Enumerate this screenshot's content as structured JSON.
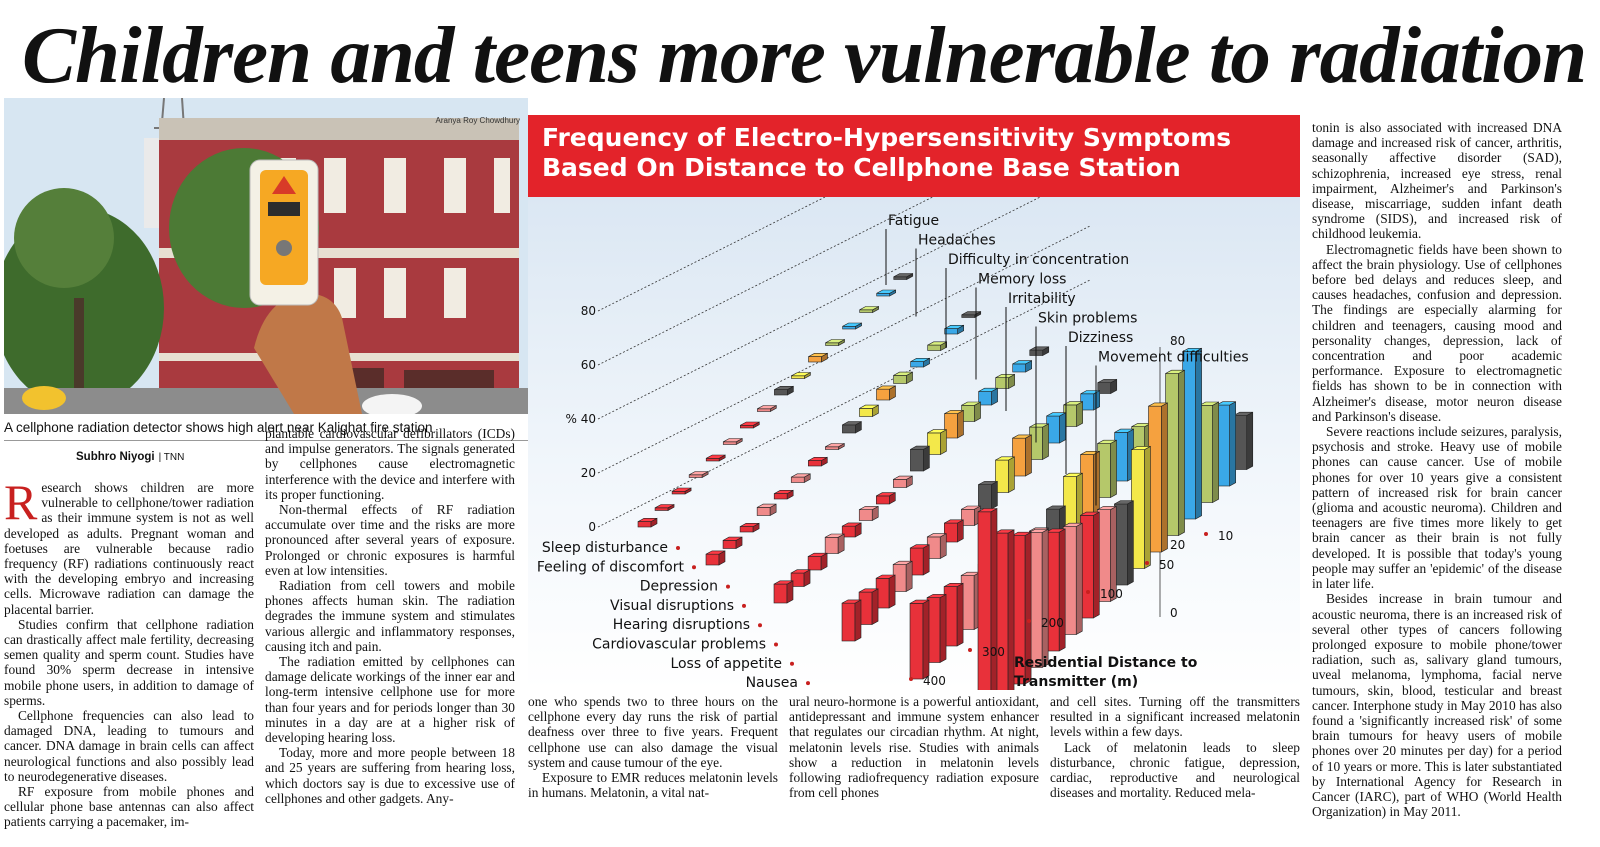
{
  "headline": "Children and teens more vulnerable to radiation",
  "photo": {
    "credit": "Aranya Roy Chowdhury",
    "caption": "A cellphone radiation detector shows high alert near Kalighat fire station"
  },
  "byline": {
    "author": "Subhro Niyogi",
    "agency": "| TNN"
  },
  "col1": {
    "dropcap": "R",
    "p1": "esearch shows children are more vulnerable to cellphone/tower radiation as their immune system is not as well developed as adults. Pregnant woman and foetuses are vulnerable because radio frequency (RF) radiations continuously react with the developing embryo and increasing cells. Microwave radiation can damage the placental barrier.",
    "p2": "Studies confirm that cellphone radiation can drastically affect male fertility, decreasing semen quality and sperm count. Studies have found 30% sperm decrease in intensive mobile phone users, in addition to damage of sperms.",
    "p3": "Cellphone frequencies can also lead to damaged DNA, leading to tumours and cancer. DNA damage in brain cells can affect neurological functions and also possibly lead to neurodegenerative diseases.",
    "p4": "RF exposure from mobile phones and cellular phone base antennas can also affect patients carrying a pacemaker, im-"
  },
  "col2": {
    "p1": "plantable cardiovascular defibrillators (ICDs) and impulse generators. The signals generated by cellphones cause electromagnetic interference with the device and interfere with its proper functioning.",
    "p2": "Non-thermal effects of RF radiation accumulate over time and the risks are more pronounced after several years of exposure. Prolonged or chronic exposures is harmful even at low intensities.",
    "p3": "Radiation from cell towers and mobile phones affects human skin. The radiation degrades the immune system and stimulates various allergic and inflammatory responses, causing itch and pain.",
    "p4": "The radiation emitted by cellphones can damage delicate workings of the inner ear and long-term intensive cellphone use for more than four years and for periods longer than 30 minutes in a day are at a higher risk of developing hearing loss.",
    "p5": "Today, more and more people between 18 and 25 years are suffering from hearing loss, which doctors say is due to excessive use of cellphones and other gadgets. Any-"
  },
  "col3": {
    "p1": "one who spends two to three hours on the cellphone every day runs the risk of partial deafness over three to five years. Frequent cellphone use can also damage the visual system and cause tumour of the eye.",
    "p2": "Exposure to EMR reduces melatonin levels in humans. Melatonin, a vital nat-"
  },
  "col4": {
    "p1": "ural neuro-hormone is a powerful antioxidant, antidepressant and immune system enhancer that regulates our circadian rhythm. At night, melatonin levels rise. Studies with animals show a reduction in melatonin levels following radiofrequency radiation exposure from cell phones"
  },
  "col5": {
    "p1": "and cell sites. Turning off the transmitters resulted in a significant increased melatonin levels within a few days.",
    "p2": "Lack of melatonin leads to sleep disturbance, chronic fatigue, depression, cardiac, reproductive and neurological diseases and mortality. Reduced mela-"
  },
  "col6": {
    "p1": "tonin is also associated with increased DNA damage and increased risk of cancer, arthritis, seasonally affective disorder (SAD), schizophrenia, increased eye stress, renal impairment, Alzheimer's and Parkinson's disease, miscarriage, sudden infant death syndrome (SIDS), and increased risk of childhood leukemia.",
    "p2": "Electromagnetic fields have been shown to affect the brain physiology. Use of cellphones before bed delays and reduces sleep, and causes headaches, confusion and depression. The findings are especially alarming for children and teenagers, causing mood and personality changes, depression, lack of concentration and poor academic performance. Exposure to electromagnetic fields has shown to be in connection with Alzheimer's disease, motor neuron disease and Parkinson's disease.",
    "p3": "Severe reactions include seizures, paralysis, psychosis and stroke. Heavy use of mobile phones can cause cancer. Use of mobile phones for over 10 years give a consistent pattern of increased risk for brain cancer (glioma and acoustic neuroma). Children and teenagers are five times more likely to get brain cancer as their brain is not fully developed. It is possible that today's young people may suffer an 'epidemic' of the disease in later life.",
    "p4": "Besides increase in brain tumour and acoustic neuroma, there is an increased risk of several other types of cancers following prolonged exposure to mobile phone/tower radiation, such as, salivary gland tumours, uveal melanoma, lymphoma, facial nerve tumours, skin, blood, testicular and breast cancer. Interphone study in May 2010 has also found a 'significantly increased risk' of some brain tumours for heavy users of mobile phones over 20 minutes per day) for a period of 10 years or more. This is later substantiated by International Agency for Research in Cancer (IARC), part of WHO (World Health Organization) in May 2011."
  },
  "chart_data": {
    "type": "bar",
    "title_line1": "Frequency of Electro-Hypersensitivity Symptoms",
    "title_line2": "Based On Distance to Cellphone Base Station",
    "ylabel": "%",
    "yticks_left": [
      "0",
      "20",
      "% 40",
      "60",
      "80"
    ],
    "yticks_right": [
      "0",
      "20",
      "40 %",
      "60",
      "80"
    ],
    "ylim": [
      0,
      80
    ],
    "xlabel_line1": "Residential Distance to",
    "xlabel_line2": "Transmitter (m)",
    "categories": [
      "400",
      "300",
      "200",
      "100",
      "50",
      "10"
    ],
    "series": [
      {
        "name": "Fatigue",
        "color": "#e8313a",
        "values": [
          2,
          4,
          7,
          14,
          28,
          76
        ]
      },
      {
        "name": "Headaches",
        "color": "#e8313a",
        "values": [
          1,
          3,
          5,
          12,
          24,
          62
        ]
      },
      {
        "name": "Difficulty in concentration",
        "color": "#e8313a",
        "values": [
          1,
          2,
          5,
          11,
          22,
          55
        ]
      },
      {
        "name": "Memory loss",
        "color": "#f08a8a",
        "values": [
          1,
          3,
          6,
          10,
          20,
          50
        ]
      },
      {
        "name": "Irritability",
        "color": "#e8313a",
        "values": [
          1,
          2,
          4,
          10,
          18,
          44
        ]
      },
      {
        "name": "Skin problems",
        "color": "#f08a8a",
        "values": [
          1,
          2,
          4,
          8,
          16,
          40
        ]
      },
      {
        "name": "Dizziness",
        "color": "#e8313a",
        "values": [
          1,
          2,
          3,
          7,
          14,
          38
        ]
      },
      {
        "name": "Movement difficulties",
        "color": "#f08a8a",
        "values": [
          1,
          1,
          3,
          6,
          12,
          34
        ]
      },
      {
        "name": "Sleep disturbance",
        "color": "#555555",
        "values": [
          2,
          3,
          8,
          9,
          14,
          30
        ]
      },
      {
        "name": "Feeling of discomfort",
        "color": "#f3e84a",
        "values": [
          1,
          3,
          8,
          12,
          20,
          44
        ]
      },
      {
        "name": "Depression",
        "color": "#f5a13f",
        "values": [
          2,
          4,
          9,
          14,
          22,
          54
        ]
      },
      {
        "name": "Visual disruptions",
        "color": "#b5c86a",
        "values": [
          1,
          3,
          6,
          12,
          20,
          60
        ]
      },
      {
        "name": "Hearing disruptions",
        "color": "#3aa8e8",
        "values": [
          1,
          2,
          5,
          10,
          18,
          62
        ]
      },
      {
        "name": "Cardiovascular problems",
        "color": "#b5c86a",
        "values": [
          1,
          2,
          4,
          8,
          14,
          36
        ]
      },
      {
        "name": "Loss of appetite",
        "color": "#3aa8e8",
        "values": [
          1,
          2,
          3,
          6,
          10,
          30
        ]
      },
      {
        "name": "Nausea",
        "color": "#555555",
        "values": [
          1,
          1,
          2,
          4,
          8,
          20
        ]
      }
    ]
  }
}
